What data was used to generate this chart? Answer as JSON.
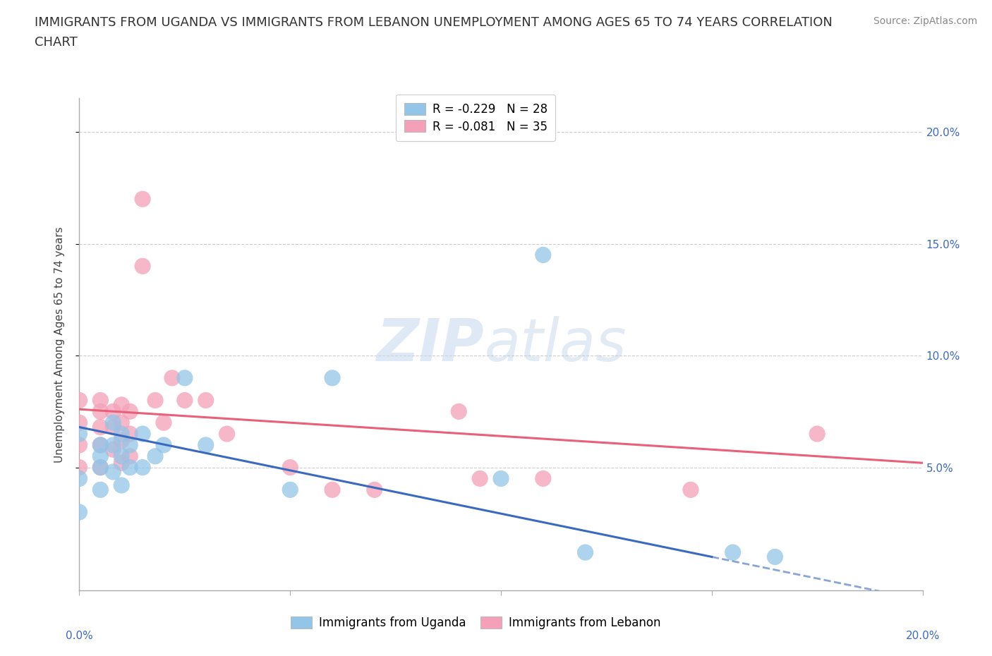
{
  "title_line1": "IMMIGRANTS FROM UGANDA VS IMMIGRANTS FROM LEBANON UNEMPLOYMENT AMONG AGES 65 TO 74 YEARS CORRELATION",
  "title_line2": "CHART",
  "source": "Source: ZipAtlas.com",
  "ylabel": "Unemployment Among Ages 65 to 74 years",
  "ylabel_right_ticks": [
    "20.0%",
    "15.0%",
    "10.0%",
    "5.0%"
  ],
  "ylabel_right_vals": [
    0.2,
    0.15,
    0.1,
    0.05
  ],
  "xlim": [
    0.0,
    0.2
  ],
  "ylim": [
    -0.005,
    0.215
  ],
  "legend_r_uganda": "R = -0.229",
  "legend_n_uganda": "N = 28",
  "legend_r_lebanon": "R = -0.081",
  "legend_n_lebanon": "N = 35",
  "uganda_color": "#92c5e8",
  "lebanon_color": "#f4a0b8",
  "trendline_uganda_color": "#3a6abf",
  "trendline_lebanon_color": "#e8607a",
  "watermark_zip": "ZIP",
  "watermark_atlas": "atlas",
  "background_color": "#ffffff",
  "grid_color": "#cccccc",
  "uganda_scatter_x": [
    0.0,
    0.0,
    0.0,
    0.005,
    0.005,
    0.005,
    0.005,
    0.008,
    0.008,
    0.008,
    0.01,
    0.01,
    0.01,
    0.012,
    0.012,
    0.015,
    0.015,
    0.018,
    0.02,
    0.025,
    0.03,
    0.05,
    0.06,
    0.1,
    0.11,
    0.12,
    0.155,
    0.165
  ],
  "uganda_scatter_y": [
    0.065,
    0.045,
    0.03,
    0.06,
    0.055,
    0.05,
    0.04,
    0.07,
    0.06,
    0.048,
    0.065,
    0.055,
    0.042,
    0.06,
    0.05,
    0.065,
    0.05,
    0.055,
    0.06,
    0.09,
    0.06,
    0.04,
    0.09,
    0.045,
    0.145,
    0.012,
    0.012,
    0.01
  ],
  "lebanon_scatter_x": [
    0.0,
    0.0,
    0.0,
    0.0,
    0.005,
    0.005,
    0.005,
    0.005,
    0.005,
    0.008,
    0.008,
    0.008,
    0.01,
    0.01,
    0.01,
    0.01,
    0.012,
    0.012,
    0.012,
    0.015,
    0.015,
    0.018,
    0.02,
    0.022,
    0.025,
    0.03,
    0.035,
    0.05,
    0.06,
    0.07,
    0.09,
    0.095,
    0.11,
    0.145,
    0.175
  ],
  "lebanon_scatter_y": [
    0.08,
    0.07,
    0.06,
    0.05,
    0.08,
    0.075,
    0.068,
    0.06,
    0.05,
    0.075,
    0.068,
    0.058,
    0.078,
    0.07,
    0.062,
    0.052,
    0.075,
    0.065,
    0.055,
    0.17,
    0.14,
    0.08,
    0.07,
    0.09,
    0.08,
    0.08,
    0.065,
    0.05,
    0.04,
    0.04,
    0.075,
    0.045,
    0.045,
    0.04,
    0.065
  ],
  "title_fontsize": 13,
  "axis_label_fontsize": 11,
  "tick_fontsize": 11,
  "legend_fontsize": 12,
  "source_fontsize": 10
}
